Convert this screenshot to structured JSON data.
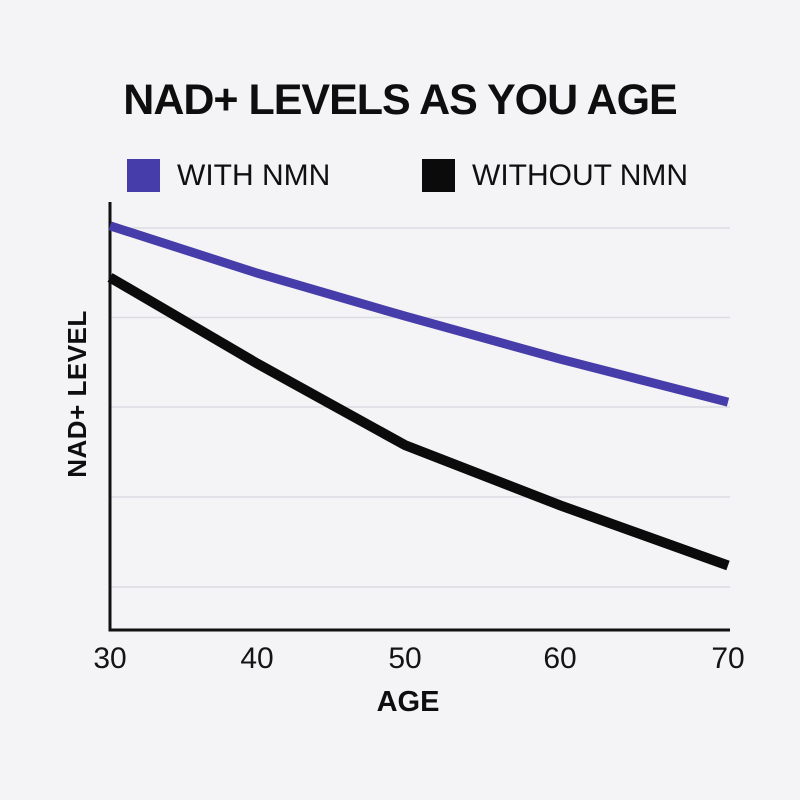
{
  "title": "NAD+ LEVELS AS YOU AGE",
  "colors": {
    "background": "#F4F3F5",
    "gridline": "#DADDE3",
    "axis": "#111111",
    "text": "#0E0E0E"
  },
  "chart_data": {
    "type": "line",
    "title": "NAD+ LEVELS AS YOU AGE",
    "xlabel": "AGE",
    "ylabel": "NAD+ LEVEL",
    "x": [
      30,
      40,
      50,
      60,
      70
    ],
    "x_tick_labels": [
      "30",
      "40",
      "50",
      "60",
      "70"
    ],
    "ylim": [
      0,
      100
    ],
    "y_tick_labels": [],
    "grid": "horizontal-only",
    "legend_position": "top",
    "series": [
      {
        "name": "WITH NMN",
        "color": "#473DAA",
        "stroke_width": 9,
        "values": [
          94,
          83,
          73,
          63,
          53
        ]
      },
      {
        "name": "WITHOUT NMN",
        "color": "#0B0B0B",
        "stroke_width": 10,
        "values": [
          82,
          62,
          43,
          29,
          15
        ]
      }
    ]
  }
}
